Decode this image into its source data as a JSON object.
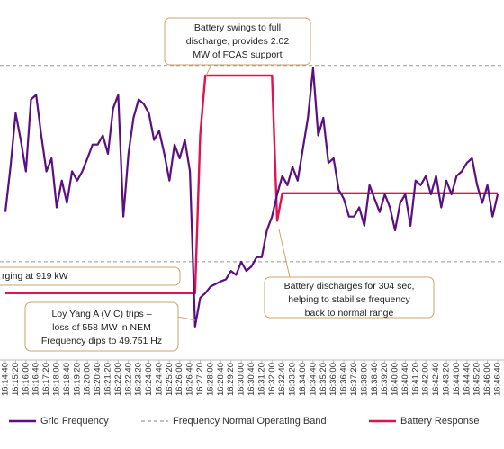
{
  "chart_data": {
    "type": "line",
    "categories": [
      "16:14:40",
      null,
      "16:15:20",
      null,
      "16:16:00",
      null,
      "16:16:40",
      null,
      "16:17:20",
      null,
      "16:18:00",
      null,
      "16:18:40",
      null,
      "16:19:20",
      null,
      "16:20:00",
      null,
      "16:20:40",
      null,
      "16:21:20",
      null,
      "16:22:00",
      null,
      "16:22:40",
      null,
      "16:23:20",
      null,
      "16:24:00",
      null,
      "16:24:40",
      null,
      "16:25:20",
      null,
      "16:26:00",
      null,
      "16:26:40",
      null,
      "16:27:20",
      null,
      "16:28:00",
      null,
      "16:28:40",
      null,
      "16:29:20",
      null,
      "16:30:00",
      null,
      "16:30:40",
      null,
      "16:31:20",
      null,
      "16:32:00",
      null,
      "16:32:40",
      null,
      "16:33:20",
      null,
      "16:34:00",
      null,
      "16:34:40",
      null,
      "16:35:20",
      null,
      "16:36:00",
      null,
      "16:36:40",
      null,
      "16:37:20",
      null,
      "16:38:00",
      null,
      "16:38:40",
      null,
      "16:39:20",
      null,
      "16:40:00",
      null,
      "16:40:40",
      null,
      "16:41:20",
      null,
      "16:42:00",
      null,
      "16:42:40",
      null,
      "16:43:20",
      null,
      "16:44:00",
      null,
      "16:44:40",
      null,
      "16:45:20",
      null,
      "16:46:00",
      null,
      "16:46:40"
    ],
    "series": [
      {
        "name": "Grid Frequency",
        "color": "#5b0f82",
        "values": [
          49.926,
          49.995,
          50.077,
          50.036,
          49.988,
          50.098,
          50.105,
          50.043,
          49.988,
          50.008,
          49.933,
          49.974,
          49.94,
          49.988,
          49.974,
          49.988,
          50.008,
          50.029,
          50.029,
          50.043,
          50.015,
          50.084,
          50.105,
          49.919,
          50.015,
          50.07,
          50.098,
          50.091,
          50.077,
          50.036,
          50.05,
          50.015,
          49.974,
          50.029,
          50.008,
          50.036,
          49.988,
          49.751,
          49.795,
          49.802,
          49.812,
          49.816,
          49.82,
          49.823,
          49.836,
          49.83,
          49.85,
          49.836,
          49.843,
          49.857,
          49.857,
          49.898,
          49.919,
          49.953,
          49.981,
          49.967,
          49.995,
          49.974,
          50.022,
          50.07,
          50.146,
          50.043,
          50.07,
          50.001,
          50.008,
          49.96,
          49.946,
          49.919,
          49.919,
          49.933,
          49.905,
          49.967,
          49.946,
          49.926,
          49.953,
          49.933,
          49.898,
          49.94,
          49.953,
          49.905,
          49.974,
          49.967,
          49.981,
          49.953,
          49.981,
          49.933,
          49.974,
          49.953,
          49.981,
          49.988,
          50.001,
          50.008,
          49.967,
          49.94,
          49.967,
          49.919,
          49.953
        ]
      },
      {
        "name": "Battery Response",
        "color": "#e0134f",
        "axis": "y2",
        "values": [
          -0.919,
          -0.919,
          -0.919,
          -0.919,
          -0.919,
          -0.919,
          -0.919,
          -0.919,
          -0.919,
          -0.919,
          -0.919,
          -0.919,
          -0.919,
          -0.919,
          -0.919,
          -0.919,
          -0.919,
          -0.919,
          -0.919,
          -0.919,
          -0.919,
          -0.919,
          -0.919,
          -0.919,
          -0.919,
          -0.919,
          -0.919,
          -0.919,
          -0.919,
          -0.919,
          -0.919,
          -0.919,
          -0.919,
          -0.919,
          -0.919,
          -0.919,
          -0.919,
          -0.919,
          1.22,
          2.02,
          2.02,
          2.02,
          2.02,
          2.02,
          2.02,
          2.02,
          2.02,
          2.02,
          2.02,
          2.02,
          2.02,
          2.02,
          2.02,
          0.06,
          0.43,
          0.43,
          0.43,
          0.43,
          0.43,
          0.43,
          0.43,
          0.43,
          0.43,
          0.43,
          0.43,
          0.43,
          0.43,
          0.43,
          0.43,
          0.43,
          0.43,
          0.43,
          0.43,
          0.43,
          0.43,
          0.43,
          0.43,
          0.43,
          0.43,
          0.43,
          0.43,
          0.43,
          0.43,
          0.43,
          0.43,
          0.43,
          0.43,
          0.43,
          0.43,
          0.43,
          0.43,
          0.43,
          0.43,
          0.43,
          0.43,
          0.43,
          0.43
        ]
      }
    ],
    "band": {
      "name": "Frequency Normal Operating Band",
      "color": "#999999",
      "values": [
        49.85,
        50.15
      ]
    },
    "ylim": [
      49.7,
      50.25
    ],
    "y2lim": [
      -1.82,
      3.04
    ],
    "annotations": [
      [
        "Battery swings to full",
        "discharge, provides 2.02",
        "MW of FCAS support"
      ],
      [
        "rging at 919 kW"
      ],
      [
        "Loy Yang A (VIC) trips –",
        "loss of 558 MW in NEM",
        "Frequency dips to 49.751 Hz"
      ],
      [
        "Battery discharges for 304  sec,",
        "helping to stabilise frequency",
        "back to normal range"
      ]
    ]
  }
}
